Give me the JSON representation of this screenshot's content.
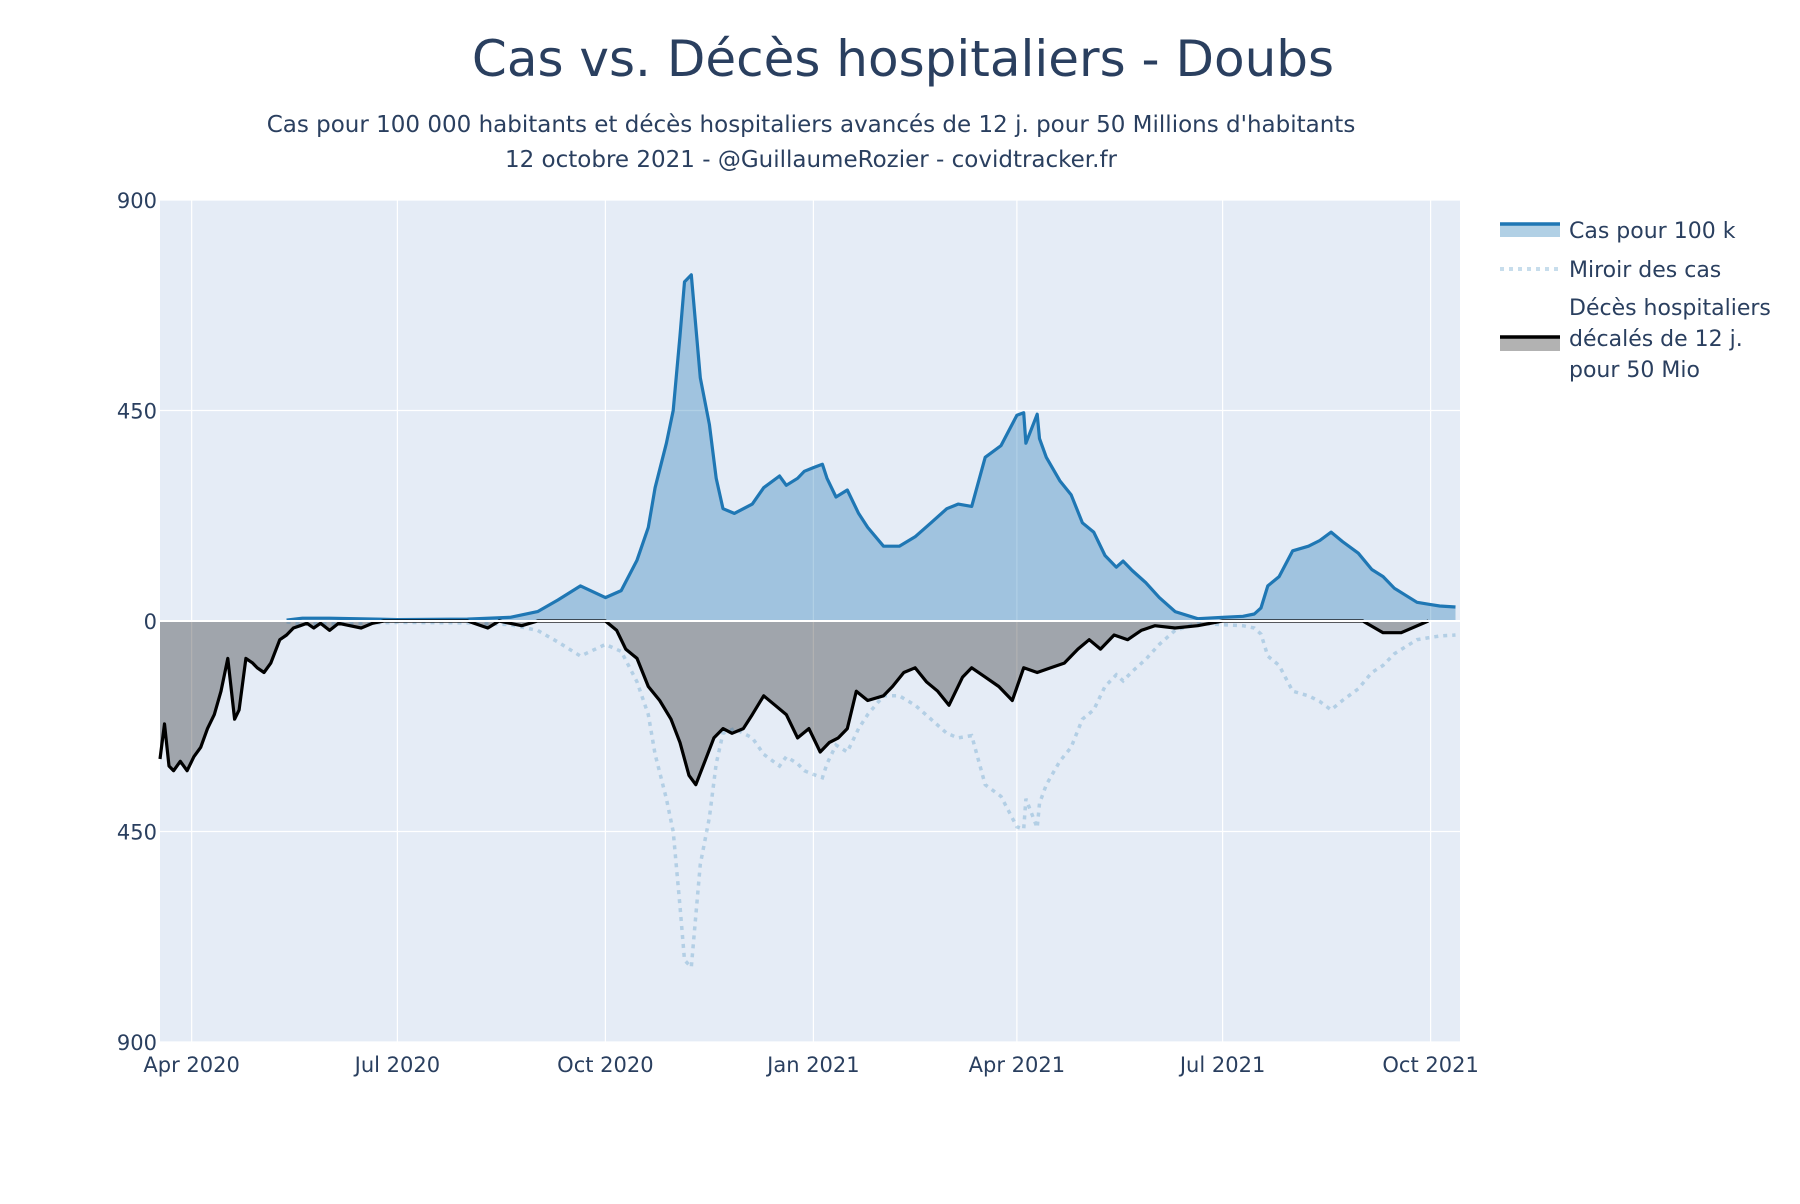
{
  "chart_data": {
    "type": "area",
    "title": "Cas vs. Décès hospitaliers - Doubs",
    "subtitle_line1": "Cas pour 100 000 habitants et décès hospitaliers avancés de 12 j. pour 50 Millions d'habitants",
    "subtitle_line2": "12 octobre 2021 - @GuillaumeRozier - covidtracker.fr",
    "xlabel": "",
    "ylabel": "",
    "ylim": [
      -900,
      900
    ],
    "xlim": [
      "2020-03-18",
      "2021-10-14"
    ],
    "grid": true,
    "legend_placement": "right",
    "y_ticks": [
      {
        "value": 900,
        "label": "900"
      },
      {
        "value": 450,
        "label": "450"
      },
      {
        "value": 0,
        "label": "0"
      },
      {
        "value": -450,
        "label": "450"
      },
      {
        "value": -900,
        "label": "900"
      }
    ],
    "x_ticks": [
      {
        "value": "2020-04-01",
        "label": "Apr 2020"
      },
      {
        "value": "2020-07-01",
        "label": "Jul 2020"
      },
      {
        "value": "2020-10-01",
        "label": "Oct 2020"
      },
      {
        "value": "2021-01-01",
        "label": "Jan 2021"
      },
      {
        "value": "2021-04-01",
        "label": "Apr 2021"
      },
      {
        "value": "2021-07-01",
        "label": "Jul 2021"
      },
      {
        "value": "2021-10-01",
        "label": "Oct 2021"
      }
    ],
    "colors": {
      "cases_line": "#1f77b4",
      "cases_fill": "rgba(31,119,180,0.35)",
      "mirror_line": "rgba(31,119,180,0.25)",
      "deaths_line": "#000000",
      "deaths_fill": "rgba(0,0,0,0.3)",
      "plot_bg": "#e5ecf6",
      "grid": "#ffffff"
    },
    "series": [
      {
        "name": "Cas pour 100 k",
        "style": "solid-filled",
        "x": [
          "2020-05-13",
          "2020-05-20",
          "2020-06-01",
          "2020-07-01",
          "2020-08-01",
          "2020-08-20",
          "2020-09-01",
          "2020-09-10",
          "2020-09-20",
          "2020-10-01",
          "2020-10-08",
          "2020-10-15",
          "2020-10-20",
          "2020-10-23",
          "2020-10-28",
          "2020-10-31",
          "2020-11-03",
          "2020-11-05",
          "2020-11-08",
          "2020-11-12",
          "2020-11-16",
          "2020-11-19",
          "2020-11-22",
          "2020-11-27",
          "2020-12-05",
          "2020-12-10",
          "2020-12-17",
          "2020-12-20",
          "2020-12-25",
          "2020-12-28",
          "2021-01-01",
          "2021-01-05",
          "2021-01-07",
          "2021-01-11",
          "2021-01-16",
          "2021-01-21",
          "2021-01-25",
          "2021-02-01",
          "2021-02-08",
          "2021-02-15",
          "2021-02-22",
          "2021-03-01",
          "2021-03-06",
          "2021-03-12",
          "2021-03-18",
          "2021-03-25",
          "2021-04-01",
          "2021-04-04",
          "2021-04-05",
          "2021-04-10",
          "2021-04-11",
          "2021-04-14",
          "2021-04-20",
          "2021-04-25",
          "2021-04-30",
          "2021-05-05",
          "2021-05-10",
          "2021-05-15",
          "2021-05-18",
          "2021-05-22",
          "2021-05-28",
          "2021-06-03",
          "2021-06-10",
          "2021-06-20",
          "2021-07-01",
          "2021-07-10",
          "2021-07-15",
          "2021-07-18",
          "2021-07-21",
          "2021-07-26",
          "2021-08-01",
          "2021-08-08",
          "2021-08-13",
          "2021-08-18",
          "2021-08-23",
          "2021-08-30",
          "2021-09-05",
          "2021-09-10",
          "2021-09-15",
          "2021-09-20",
          "2021-09-25",
          "2021-10-01",
          "2021-10-05",
          "2021-10-12"
        ],
        "y": [
          2,
          6,
          6,
          3,
          4,
          8,
          20,
          45,
          75,
          50,
          65,
          130,
          200,
          285,
          380,
          450,
          610,
          725,
          740,
          520,
          420,
          305,
          240,
          230,
          250,
          285,
          310,
          290,
          305,
          320,
          328,
          335,
          305,
          265,
          280,
          230,
          200,
          160,
          160,
          180,
          210,
          240,
          250,
          245,
          350,
          375,
          440,
          445,
          380,
          442,
          390,
          350,
          300,
          270,
          210,
          190,
          140,
          115,
          128,
          108,
          82,
          50,
          20,
          5,
          8,
          10,
          15,
          28,
          75,
          95,
          150,
          160,
          172,
          190,
          170,
          145,
          110,
          95,
          70,
          55,
          40,
          35,
          32,
          30
        ]
      },
      {
        "name": "Miroir des cas",
        "style": "dotted",
        "x": [
          "2020-05-13",
          "2020-05-20",
          "2020-06-01",
          "2020-07-01",
          "2020-08-01",
          "2020-08-20",
          "2020-09-01",
          "2020-09-10",
          "2020-09-20",
          "2020-10-01",
          "2020-10-08",
          "2020-10-15",
          "2020-10-20",
          "2020-10-23",
          "2020-10-28",
          "2020-10-31",
          "2020-11-03",
          "2020-11-05",
          "2020-11-08",
          "2020-11-12",
          "2020-11-16",
          "2020-11-19",
          "2020-11-22",
          "2020-11-27",
          "2020-12-05",
          "2020-12-10",
          "2020-12-17",
          "2020-12-20",
          "2020-12-25",
          "2020-12-28",
          "2021-01-01",
          "2021-01-05",
          "2021-01-07",
          "2021-01-11",
          "2021-01-16",
          "2021-01-21",
          "2021-01-25",
          "2021-02-01",
          "2021-02-08",
          "2021-02-15",
          "2021-02-22",
          "2021-03-01",
          "2021-03-06",
          "2021-03-12",
          "2021-03-18",
          "2021-03-25",
          "2021-04-01",
          "2021-04-04",
          "2021-04-05",
          "2021-04-10",
          "2021-04-11",
          "2021-04-14",
          "2021-04-20",
          "2021-04-25",
          "2021-04-30",
          "2021-05-05",
          "2021-05-10",
          "2021-05-15",
          "2021-05-18",
          "2021-05-22",
          "2021-05-28",
          "2021-06-03",
          "2021-06-10",
          "2021-06-20",
          "2021-07-01",
          "2021-07-10",
          "2021-07-15",
          "2021-07-18",
          "2021-07-21",
          "2021-07-26",
          "2021-08-01",
          "2021-08-08",
          "2021-08-13",
          "2021-08-18",
          "2021-08-23",
          "2021-08-30",
          "2021-09-05",
          "2021-09-10",
          "2021-09-15",
          "2021-09-20",
          "2021-09-25",
          "2021-10-01",
          "2021-10-05",
          "2021-10-12"
        ],
        "y": [
          -2,
          -6,
          -6,
          -3,
          -4,
          -8,
          -20,
          -45,
          -75,
          -50,
          -65,
          -130,
          -200,
          -285,
          -380,
          -450,
          -610,
          -725,
          -740,
          -520,
          -420,
          -305,
          -240,
          -230,
          -250,
          -285,
          -310,
          -290,
          -305,
          -320,
          -328,
          -335,
          -305,
          -265,
          -280,
          -230,
          -200,
          -160,
          -160,
          -180,
          -210,
          -240,
          -250,
          -245,
          -350,
          -375,
          -440,
          -445,
          -380,
          -442,
          -390,
          -350,
          -300,
          -270,
          -210,
          -190,
          -140,
          -115,
          -128,
          -108,
          -82,
          -50,
          -20,
          -5,
          -8,
          -10,
          -15,
          -28,
          -75,
          -95,
          -150,
          -160,
          -172,
          -190,
          -170,
          -145,
          -110,
          -95,
          -70,
          -55,
          -40,
          -35,
          -32,
          -30
        ]
      },
      {
        "name": "Décès hospitaliers décalés de 12 j. pour 50 Mio",
        "legend_lines": [
          "Décès hospitaliers",
          "décalés de 12 j.",
          "pour 50 Mio"
        ],
        "style": "solid-filled-dark",
        "x": [
          "2020-03-18",
          "2020-03-20",
          "2020-03-22",
          "2020-03-24",
          "2020-03-27",
          "2020-03-30",
          "2020-04-02",
          "2020-04-05",
          "2020-04-08",
          "2020-04-11",
          "2020-04-14",
          "2020-04-17",
          "2020-04-20",
          "2020-04-22",
          "2020-04-25",
          "2020-04-28",
          "2020-04-30",
          "2020-05-03",
          "2020-05-06",
          "2020-05-10",
          "2020-05-13",
          "2020-05-16",
          "2020-05-19",
          "2020-05-22",
          "2020-05-25",
          "2020-05-28",
          "2020-06-01",
          "2020-06-05",
          "2020-06-10",
          "2020-06-15",
          "2020-06-20",
          "2020-06-25",
          "2020-07-01",
          "2020-08-01",
          "2020-08-10",
          "2020-08-15",
          "2020-08-25",
          "2020-09-01",
          "2020-09-15",
          "2020-10-01",
          "2020-10-06",
          "2020-10-10",
          "2020-10-15",
          "2020-10-20",
          "2020-10-25",
          "2020-10-30",
          "2020-11-03",
          "2020-11-07",
          "2020-11-10",
          "2020-11-14",
          "2020-11-18",
          "2020-11-22",
          "2020-11-26",
          "2020-12-01",
          "2020-12-05",
          "2020-12-10",
          "2020-12-15",
          "2020-12-20",
          "2020-12-25",
          "2020-12-30",
          "2021-01-04",
          "2021-01-08",
          "2021-01-12",
          "2021-01-16",
          "2021-01-20",
          "2021-01-25",
          "2021-02-01",
          "2021-02-05",
          "2021-02-10",
          "2021-02-15",
          "2021-02-20",
          "2021-02-25",
          "2021-03-02",
          "2021-03-08",
          "2021-03-12",
          "2021-03-18",
          "2021-03-24",
          "2021-03-30",
          "2021-04-04",
          "2021-04-10",
          "2021-04-16",
          "2021-04-22",
          "2021-04-28",
          "2021-05-03",
          "2021-05-08",
          "2021-05-14",
          "2021-05-20",
          "2021-05-26",
          "2021-06-01",
          "2021-06-10",
          "2021-06-20",
          "2021-07-01",
          "2021-08-01",
          "2021-08-20",
          "2021-09-01",
          "2021-09-10",
          "2021-09-15",
          "2021-09-18",
          "2021-09-30"
        ],
        "y": [
          -295,
          -220,
          -310,
          -320,
          -300,
          -320,
          -290,
          -270,
          -230,
          -200,
          -150,
          -80,
          -210,
          -190,
          -80,
          -90,
          -100,
          -110,
          -90,
          -40,
          -30,
          -15,
          -10,
          -5,
          -15,
          -5,
          -20,
          -5,
          -10,
          -15,
          -5,
          0,
          0,
          0,
          -15,
          0,
          -10,
          0,
          0,
          0,
          -20,
          -60,
          -80,
          -140,
          -170,
          -210,
          -260,
          -330,
          -350,
          -300,
          -250,
          -230,
          -240,
          -230,
          -200,
          -160,
          -180,
          -200,
          -250,
          -230,
          -280,
          -260,
          -250,
          -230,
          -150,
          -170,
          -160,
          -140,
          -110,
          -100,
          -130,
          -150,
          -180,
          -120,
          -100,
          -120,
          -140,
          -170,
          -100,
          -110,
          -100,
          -90,
          -60,
          -40,
          -60,
          -30,
          -40,
          -20,
          -10,
          -15,
          -10,
          0,
          0,
          0,
          0,
          -25,
          -25,
          -25,
          0
        ]
      }
    ]
  }
}
